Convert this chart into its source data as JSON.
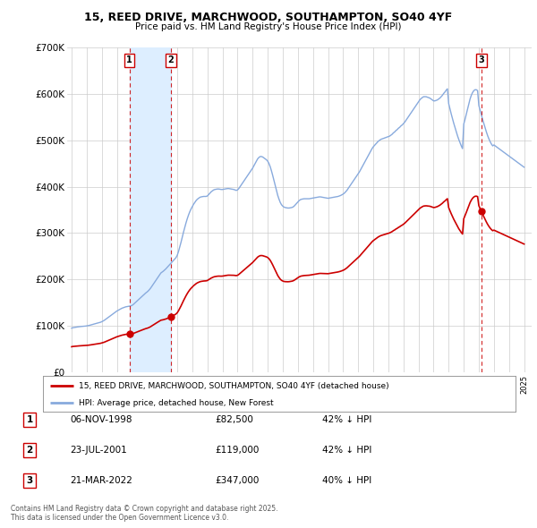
{
  "title": "15, REED DRIVE, MARCHWOOD, SOUTHAMPTON, SO40 4YF",
  "subtitle": "Price paid vs. HM Land Registry's House Price Index (HPI)",
  "background_color": "#ffffff",
  "plot_bg_color": "#ffffff",
  "grid_color": "#cccccc",
  "ylim": [
    0,
    700000
  ],
  "yticks": [
    0,
    100000,
    200000,
    300000,
    400000,
    500000,
    600000,
    700000
  ],
  "ytick_labels": [
    "£0",
    "£100K",
    "£200K",
    "£300K",
    "£400K",
    "£500K",
    "£600K",
    "£700K"
  ],
  "sale_prices": [
    82500,
    119000,
    347000
  ],
  "sale_labels": [
    "1",
    "2",
    "3"
  ],
  "sale_year_floats": [
    1998.833,
    2001.583,
    2022.167
  ],
  "red_line_color": "#cc0000",
  "blue_line_color": "#88aadd",
  "vline_color": "#cc0000",
  "shade_color": "#ddeeff",
  "legend_label_red": "15, REED DRIVE, MARCHWOOD, SOUTHAMPTON, SO40 4YF (detached house)",
  "legend_label_blue": "HPI: Average price, detached house, New Forest",
  "table_entries": [
    {
      "num": "1",
      "date": "06-NOV-1998",
      "price": "£82,500",
      "note": "42% ↓ HPI"
    },
    {
      "num": "2",
      "date": "23-JUL-2001",
      "price": "£119,000",
      "note": "42% ↓ HPI"
    },
    {
      "num": "3",
      "date": "21-MAR-2022",
      "price": "£347,000",
      "note": "40% ↓ HPI"
    }
  ],
  "footnote": "Contains HM Land Registry data © Crown copyright and database right 2025.\nThis data is licensed under the Open Government Licence v3.0.",
  "hpi_years": [
    1995.0,
    1995.083,
    1995.167,
    1995.25,
    1995.333,
    1995.417,
    1995.5,
    1995.583,
    1995.667,
    1995.75,
    1995.833,
    1995.917,
    1996.0,
    1996.083,
    1996.167,
    1996.25,
    1996.333,
    1996.417,
    1996.5,
    1996.583,
    1996.667,
    1996.75,
    1996.833,
    1996.917,
    1997.0,
    1997.083,
    1997.167,
    1997.25,
    1997.333,
    1997.417,
    1997.5,
    1997.583,
    1997.667,
    1997.75,
    1997.833,
    1997.917,
    1998.0,
    1998.083,
    1998.167,
    1998.25,
    1998.333,
    1998.417,
    1998.5,
    1998.583,
    1998.667,
    1998.75,
    1998.833,
    1998.917,
    1999.0,
    1999.083,
    1999.167,
    1999.25,
    1999.333,
    1999.417,
    1999.5,
    1999.583,
    1999.667,
    1999.75,
    1999.833,
    1999.917,
    2000.0,
    2000.083,
    2000.167,
    2000.25,
    2000.333,
    2000.417,
    2000.5,
    2000.583,
    2000.667,
    2000.75,
    2000.833,
    2000.917,
    2001.0,
    2001.083,
    2001.167,
    2001.25,
    2001.333,
    2001.417,
    2001.5,
    2001.583,
    2001.667,
    2001.75,
    2001.833,
    2001.917,
    2002.0,
    2002.083,
    2002.167,
    2002.25,
    2002.333,
    2002.417,
    2002.5,
    2002.583,
    2002.667,
    2002.75,
    2002.833,
    2002.917,
    2003.0,
    2003.083,
    2003.167,
    2003.25,
    2003.333,
    2003.417,
    2003.5,
    2003.583,
    2003.667,
    2003.75,
    2003.833,
    2003.917,
    2004.0,
    2004.083,
    2004.167,
    2004.25,
    2004.333,
    2004.417,
    2004.5,
    2004.583,
    2004.667,
    2004.75,
    2004.833,
    2004.917,
    2005.0,
    2005.083,
    2005.167,
    2005.25,
    2005.333,
    2005.417,
    2005.5,
    2005.583,
    2005.667,
    2005.75,
    2005.833,
    2005.917,
    2006.0,
    2006.083,
    2006.167,
    2006.25,
    2006.333,
    2006.417,
    2006.5,
    2006.583,
    2006.667,
    2006.75,
    2006.833,
    2006.917,
    2007.0,
    2007.083,
    2007.167,
    2007.25,
    2007.333,
    2007.417,
    2007.5,
    2007.583,
    2007.667,
    2007.75,
    2007.833,
    2007.917,
    2008.0,
    2008.083,
    2008.167,
    2008.25,
    2008.333,
    2008.417,
    2008.5,
    2008.583,
    2008.667,
    2008.75,
    2008.833,
    2008.917,
    2009.0,
    2009.083,
    2009.167,
    2009.25,
    2009.333,
    2009.417,
    2009.5,
    2009.583,
    2009.667,
    2009.75,
    2009.833,
    2009.917,
    2010.0,
    2010.083,
    2010.167,
    2010.25,
    2010.333,
    2010.417,
    2010.5,
    2010.583,
    2010.667,
    2010.75,
    2010.833,
    2010.917,
    2011.0,
    2011.083,
    2011.167,
    2011.25,
    2011.333,
    2011.417,
    2011.5,
    2011.583,
    2011.667,
    2011.75,
    2011.833,
    2011.917,
    2012.0,
    2012.083,
    2012.167,
    2012.25,
    2012.333,
    2012.417,
    2012.5,
    2012.583,
    2012.667,
    2012.75,
    2012.833,
    2012.917,
    2013.0,
    2013.083,
    2013.167,
    2013.25,
    2013.333,
    2013.417,
    2013.5,
    2013.583,
    2013.667,
    2013.75,
    2013.833,
    2013.917,
    2014.0,
    2014.083,
    2014.167,
    2014.25,
    2014.333,
    2014.417,
    2014.5,
    2014.583,
    2014.667,
    2014.75,
    2014.833,
    2014.917,
    2015.0,
    2015.083,
    2015.167,
    2015.25,
    2015.333,
    2015.417,
    2015.5,
    2015.583,
    2015.667,
    2015.75,
    2015.833,
    2015.917,
    2016.0,
    2016.083,
    2016.167,
    2016.25,
    2016.333,
    2016.417,
    2016.5,
    2016.583,
    2016.667,
    2016.75,
    2016.833,
    2016.917,
    2017.0,
    2017.083,
    2017.167,
    2017.25,
    2017.333,
    2017.417,
    2017.5,
    2017.583,
    2017.667,
    2017.75,
    2017.833,
    2017.917,
    2018.0,
    2018.083,
    2018.167,
    2018.25,
    2018.333,
    2018.417,
    2018.5,
    2018.583,
    2018.667,
    2018.75,
    2018.833,
    2018.917,
    2019.0,
    2019.083,
    2019.167,
    2019.25,
    2019.333,
    2019.417,
    2019.5,
    2019.583,
    2019.667,
    2019.75,
    2019.833,
    2019.917,
    2020.0,
    2020.083,
    2020.167,
    2020.25,
    2020.333,
    2020.417,
    2020.5,
    2020.583,
    2020.667,
    2020.75,
    2020.833,
    2020.917,
    2021.0,
    2021.083,
    2021.167,
    2021.25,
    2021.333,
    2021.417,
    2021.5,
    2021.583,
    2021.667,
    2021.75,
    2021.833,
    2021.917,
    2022.0,
    2022.083,
    2022.167,
    2022.25,
    2022.333,
    2022.417,
    2022.5,
    2022.583,
    2022.667,
    2022.75,
    2022.833,
    2022.917,
    2023.0,
    2023.083,
    2023.167,
    2023.25,
    2023.333,
    2023.417,
    2023.5,
    2023.583,
    2023.667,
    2023.75,
    2023.833,
    2023.917,
    2024.0,
    2024.083,
    2024.167,
    2024.25,
    2024.333,
    2024.417,
    2024.5,
    2024.583,
    2024.667,
    2024.75,
    2024.833,
    2024.917,
    2025.0
  ],
  "hpi_values": [
    95000,
    96000,
    96500,
    97000,
    97500,
    97800,
    98200,
    98500,
    98800,
    99000,
    99300,
    99500,
    100000,
    100500,
    101000,
    101800,
    102500,
    103200,
    104000,
    104800,
    105500,
    106200,
    107000,
    107800,
    109000,
    110500,
    112000,
    114000,
    116000,
    118000,
    120000,
    122000,
    124000,
    126000,
    128000,
    130000,
    132000,
    133500,
    135000,
    136500,
    138000,
    139000,
    140000,
    141000,
    141500,
    142000,
    142500,
    143000,
    144000,
    146000,
    148500,
    151000,
    153500,
    156000,
    158500,
    161000,
    163500,
    166000,
    168500,
    171000,
    173000,
    175500,
    178500,
    182000,
    186000,
    190000,
    194000,
    198000,
    202000,
    206000,
    210000,
    214000,
    216000,
    218000,
    220500,
    223000,
    226000,
    229000,
    232000,
    235000,
    238000,
    241000,
    244000,
    247000,
    252000,
    260000,
    270000,
    280000,
    291000,
    302000,
    312000,
    322000,
    331000,
    339000,
    346000,
    352000,
    357000,
    362000,
    366000,
    370000,
    373000,
    375000,
    377000,
    378000,
    378500,
    379000,
    379000,
    379000,
    380000,
    383000,
    386000,
    389000,
    391000,
    393000,
    394000,
    394500,
    395000,
    395000,
    394500,
    394000,
    394000,
    394500,
    395000,
    395500,
    396000,
    396000,
    395500,
    395000,
    394500,
    394000,
    393000,
    392000,
    393000,
    396000,
    400000,
    404000,
    408000,
    412000,
    416000,
    420000,
    424000,
    428000,
    432000,
    436000,
    440000,
    445000,
    450000,
    455000,
    460000,
    463000,
    465000,
    465000,
    464000,
    462000,
    460000,
    458000,
    455000,
    450000,
    443000,
    434000,
    424000,
    413000,
    402000,
    391000,
    381000,
    373000,
    366000,
    361000,
    358000,
    356000,
    355000,
    354500,
    354000,
    354000,
    354500,
    355000,
    356000,
    358000,
    361000,
    364000,
    367000,
    370000,
    372000,
    373000,
    373500,
    374000,
    374000,
    374000,
    374000,
    374000,
    374500,
    375000,
    375500,
    376000,
    376500,
    377000,
    377500,
    378000,
    378000,
    377500,
    377000,
    376500,
    376000,
    375500,
    375000,
    375500,
    376000,
    376500,
    377000,
    377500,
    378000,
    378500,
    379000,
    380000,
    381000,
    382500,
    384000,
    386000,
    389000,
    392000,
    396000,
    400000,
    404000,
    408000,
    412000,
    416000,
    420000,
    424000,
    428000,
    432000,
    437000,
    442000,
    447000,
    452000,
    457000,
    462000,
    467000,
    472000,
    477000,
    482000,
    486000,
    489000,
    492000,
    495000,
    498000,
    500000,
    502000,
    503000,
    504000,
    505000,
    506000,
    507000,
    508000,
    509000,
    511000,
    513000,
    516000,
    518000,
    521000,
    523000,
    526000,
    528000,
    531000,
    533000,
    536000,
    539000,
    543000,
    547000,
    551000,
    555000,
    559000,
    563000,
    567000,
    571000,
    575000,
    579000,
    583000,
    587000,
    590000,
    592000,
    594000,
    594000,
    594000,
    593000,
    592000,
    591000,
    589000,
    587000,
    585000,
    585000,
    586000,
    587000,
    589000,
    591000,
    594000,
    597000,
    601000,
    604000,
    608000,
    611000,
    579000,
    568000,
    557000,
    547000,
    537000,
    528000,
    519000,
    510000,
    502000,
    495000,
    488000,
    482000,
    535000,
    545000,
    556000,
    567000,
    578000,
    589000,
    597000,
    603000,
    607000,
    609000,
    609000,
    607000,
    575000,
    565000,
    555000,
    545000,
    536000,
    527000,
    518000,
    510000,
    503000,
    497000,
    492000,
    488000,
    490000,
    488000,
    486000,
    484000,
    482000,
    480000,
    478000,
    476000,
    474000,
    472000,
    470000,
    468000,
    466000,
    464000,
    462000,
    460000,
    458000,
    456000,
    454000,
    452000,
    450000,
    448000,
    446000,
    444000,
    442000
  ]
}
